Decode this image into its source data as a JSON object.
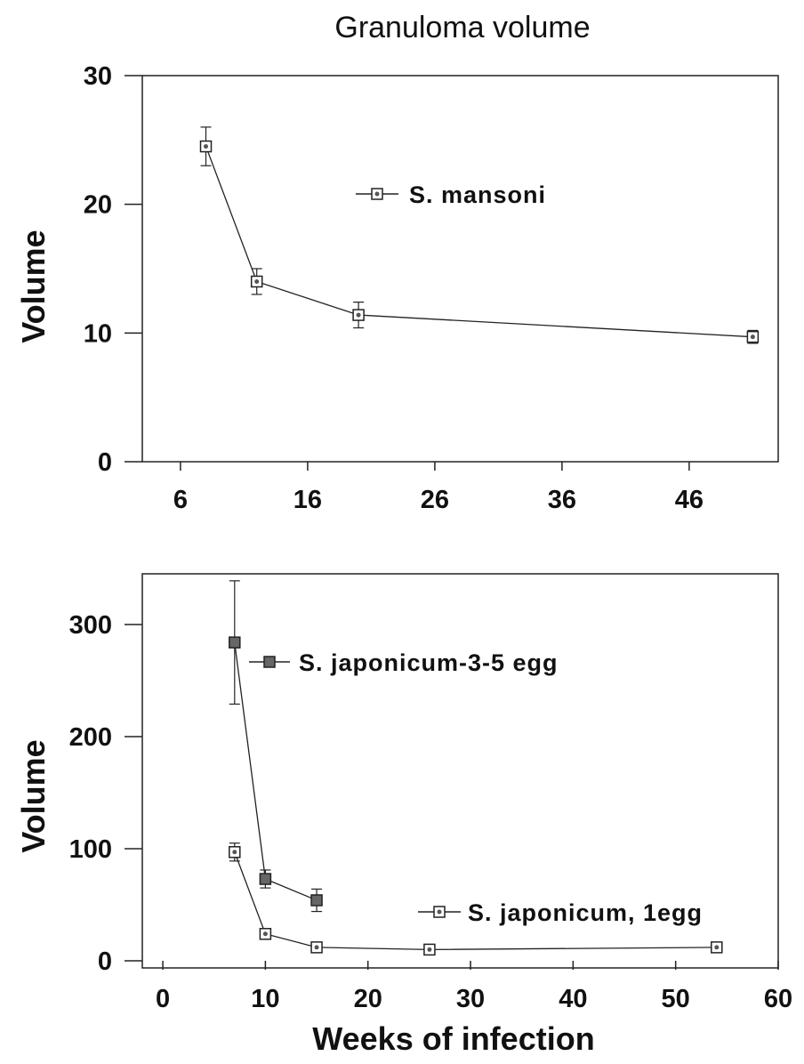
{
  "chart_data": [
    {
      "type": "line",
      "title": "Granuloma volume",
      "ylabel": "Volume",
      "xlabel": "",
      "xlim": [
        3,
        53
      ],
      "ylim": [
        0,
        30
      ],
      "x_ticks": [
        "6",
        "16",
        "26",
        "36",
        "46"
      ],
      "y_ticks": [
        "0",
        "10",
        "20",
        "30"
      ],
      "grid": false,
      "legend_position": "upper-center",
      "series": [
        {
          "name": "S. mansoni",
          "marker": "square-dot",
          "x": [
            8,
            12,
            20,
            51
          ],
          "y": [
            24.5,
            14.0,
            11.4,
            9.7
          ],
          "yerr": [
            1.5,
            1.0,
            1.0,
            0.5
          ]
        }
      ]
    },
    {
      "type": "line",
      "title": "",
      "ylabel": "Volume",
      "xlabel": "Weeks of infection",
      "xlim": [
        -2,
        60
      ],
      "ylim": [
        0,
        350
      ],
      "x_ticks": [
        "0",
        "10",
        "20",
        "30",
        "40",
        "50",
        "60"
      ],
      "y_ticks": [
        "0",
        "100",
        "200",
        "300"
      ],
      "grid": false,
      "legend_position": "inside",
      "series": [
        {
          "name": "S. japonicum-3-5 egg",
          "marker": "filled-square",
          "x": [
            7,
            10,
            15
          ],
          "y": [
            284,
            73,
            54
          ],
          "yerr": [
            55,
            8,
            10
          ]
        },
        {
          "name": "S. japonicum, 1egg",
          "marker": "square-dot",
          "x": [
            7,
            10,
            15,
            26,
            54
          ],
          "y": [
            97,
            24,
            12,
            10,
            12
          ],
          "yerr": [
            8,
            3,
            2,
            2,
            2
          ]
        }
      ]
    }
  ]
}
